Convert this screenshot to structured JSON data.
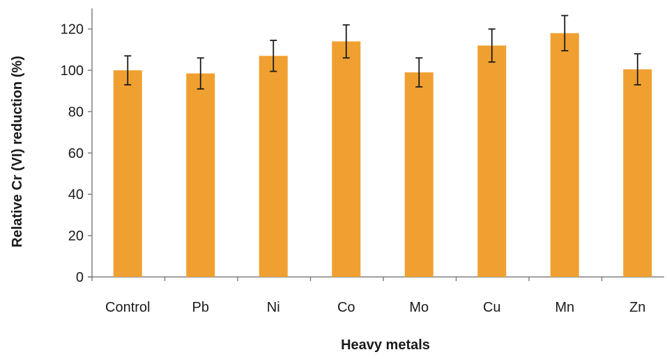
{
  "chart_data": {
    "type": "bar",
    "title": "",
    "xlabel": "Heavy metals",
    "ylabel": "Relative Cr (VI) reduction (%)",
    "categories": [
      "Control",
      "Pb",
      "Ni",
      "Co",
      "Mo",
      "Cu",
      "Mn",
      "Zn"
    ],
    "values": [
      100,
      98.5,
      107,
      114,
      99,
      112,
      118,
      100.5
    ],
    "error": [
      7,
      7.5,
      7.5,
      8,
      7,
      8,
      8.5,
      7.5
    ],
    "ylim": [
      0,
      130
    ],
    "yticks": [
      0,
      20,
      40,
      60,
      80,
      100,
      120
    ],
    "ytick_labels": [
      "0",
      "20",
      "40",
      "60",
      "80",
      "100",
      "120"
    ],
    "grid": false,
    "legend": "none",
    "colors": {
      "bar": "#F0A030",
      "error_bar": "#1a1a1a",
      "axis": "#808080"
    }
  }
}
